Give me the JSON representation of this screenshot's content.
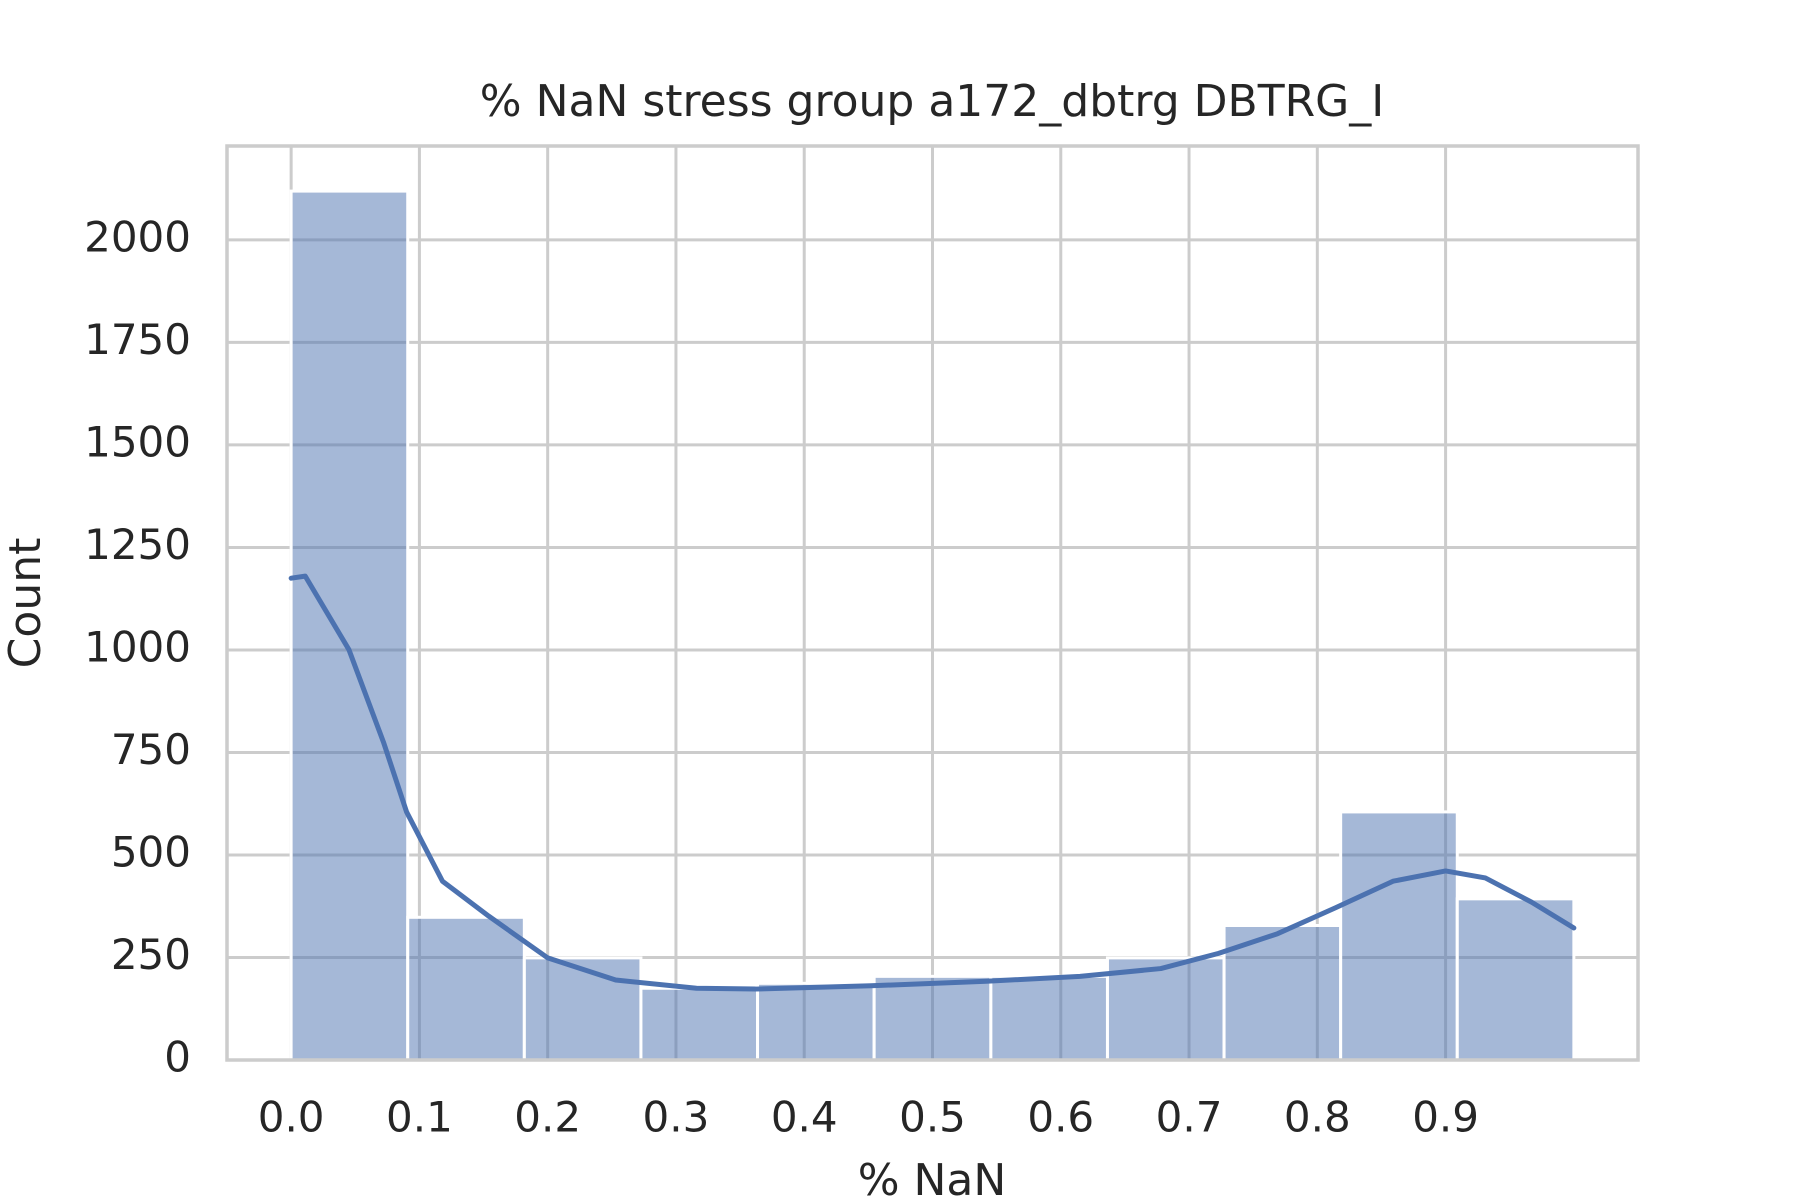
{
  "chart_data": {
    "type": "histogram",
    "title": "% NaN stress group a172_dbtrg DBTRG_I",
    "xlabel": "% NaN",
    "ylabel": "Count",
    "bins": [
      0,
      0.0909,
      0.1818,
      0.2727,
      0.3636,
      0.4545,
      0.5455,
      0.6364,
      0.7273,
      0.8182,
      0.9091,
      1.0
    ],
    "counts": [
      2119,
      348,
      249,
      175,
      187,
      204,
      204,
      249,
      328,
      605,
      393
    ],
    "color": "#4c72b0",
    "kde": {
      "x": [
        0,
        0.011,
        0.045,
        0.072,
        0.09,
        0.118,
        0.154,
        0.2,
        0.253,
        0.316,
        0.362,
        0.452,
        0.542,
        0.615,
        0.678,
        0.723,
        0.769,
        0.814,
        0.859,
        0.9,
        0.931,
        0.967,
        1.0
      ],
      "values": [
        1175,
        1180,
        1001,
        775,
        605,
        436,
        351,
        249,
        195,
        175,
        173,
        181,
        192,
        204,
        223,
        260,
        308,
        371,
        436,
        461,
        444,
        385,
        322
      ],
      "color": "#4c72b0"
    },
    "xlim": [
      -0.05,
      1.05
    ],
    "ylim": [
      0,
      2229
    ],
    "xticks": [
      {
        "value": 0,
        "label": "0.0"
      },
      0.1,
      0.2,
      0.3,
      0.4,
      0.5,
      0.6,
      0.7,
      0.8,
      0.9
    ],
    "yticks": [
      0,
      250,
      500,
      750,
      1000,
      1250,
      1500,
      1750,
      2000
    ],
    "grid": true
  }
}
